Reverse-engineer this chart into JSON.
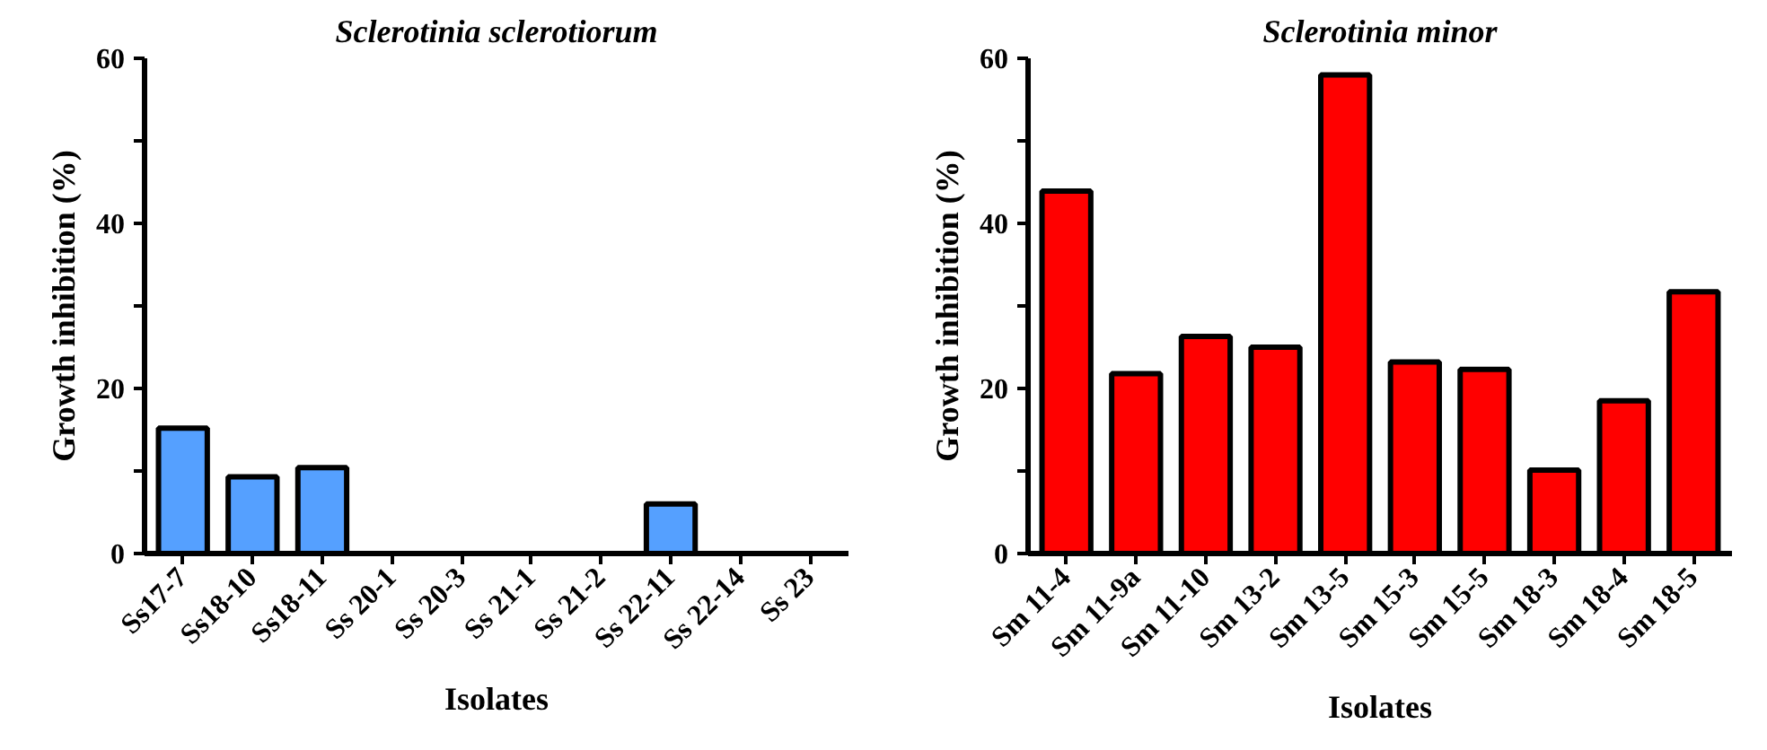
{
  "chart_data": [
    {
      "type": "bar",
      "title": "Sclerotinia sclerotiorum",
      "xlabel": "Isolates",
      "ylabel": "Growth inhibition (%)",
      "categories": [
        "Ss17-7",
        "Ss18-10",
        "Ss18-11",
        "Ss 20-1",
        "Ss 20-3",
        "Ss 21-1",
        "Ss 21-2",
        "Ss 22-11",
        "Ss 22-14",
        "Ss 23"
      ],
      "values": [
        15.2,
        9.3,
        10.4,
        0,
        0,
        0,
        0,
        6.0,
        0,
        0
      ],
      "color": "#55a0ff",
      "ylim": [
        0,
        60
      ],
      "yticks": [
        0,
        {
          "value": 10,
          "label": null
        },
        20,
        {
          "value": 30,
          "label": null
        },
        40,
        {
          "value": 50,
          "label": null
        },
        60
      ],
      "grid": false
    },
    {
      "type": "bar",
      "title": "Sclerotinia minor",
      "xlabel": "Isolates",
      "ylabel": "Growth inhibition (%)",
      "categories": [
        "Sm 11-4",
        "Sm 11-9a",
        "Sm 11-10",
        "Sm 13-2",
        "Sm 13-5",
        "Sm 15-3",
        "Sm 15-5",
        "Sm 18-3",
        "Sm 18-4",
        "Sm 18-5"
      ],
      "values": [
        43.9,
        21.8,
        26.3,
        25.0,
        58.0,
        23.2,
        22.3,
        10.1,
        18.5,
        31.7
      ],
      "color": "#ff0000",
      "ylim": [
        0,
        60
      ],
      "yticks": [
        0,
        {
          "value": 10,
          "label": null
        },
        20,
        {
          "value": 30,
          "label": null
        },
        40,
        {
          "value": 50,
          "label": null
        },
        60
      ],
      "grid": false
    }
  ]
}
